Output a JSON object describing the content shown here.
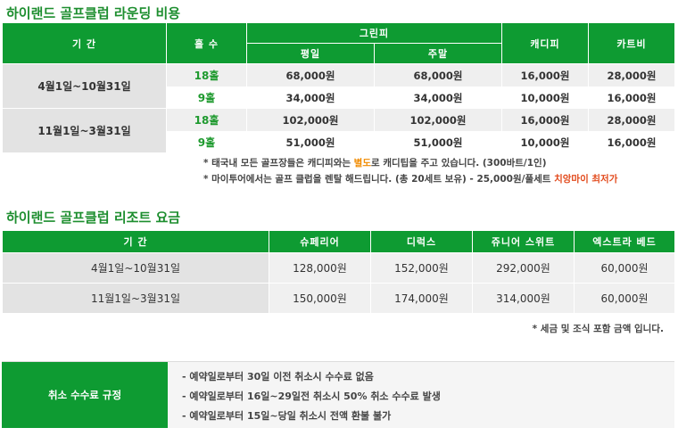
{
  "round": {
    "title": "하이랜드 골프클럽 라운딩 비용",
    "headers": {
      "period": "기 간",
      "holes": "홀 수",
      "green_fee": "그린피",
      "weekday": "평일",
      "weekend": "주말",
      "caddie": "캐디피",
      "cart": "카트비"
    },
    "rows": [
      {
        "period": "4월1일~10월31일",
        "holes": "18홀",
        "weekday": "68,000원",
        "weekend": "68,000원",
        "caddie": "16,000원",
        "cart": "28,000원"
      },
      {
        "period": "4월1일~10월31일",
        "holes": "9홀",
        "weekday": "34,000원",
        "weekend": "34,000원",
        "caddie": "10,000원",
        "cart": "16,000원"
      },
      {
        "period": "11월1일~3월31일",
        "holes": "18홀",
        "weekday": "102,000원",
        "weekend": "102,000원",
        "caddie": "16,000원",
        "cart": "28,000원"
      },
      {
        "period": "11월1일~3월31일",
        "holes": "9홀",
        "weekday": "51,000원",
        "weekend": "51,000원",
        "caddie": "10,000원",
        "cart": "16,000원"
      }
    ],
    "note1": {
      "a": "* 태국내 모든 골프장들은 캐디피와는 ",
      "b": "별도",
      "c": "로 캐디팁을 주고 있습니다. (300바트/1인)"
    },
    "note2": {
      "a": "* 마이투어에서는 골프 클럽을 렌탈 해드립니다. (총 20세트 보유) - 25,000원/풀세트 ",
      "b": "치앙마이 최저가"
    }
  },
  "resort": {
    "title": "하이랜드 골프클럽 리조트 요금",
    "headers": {
      "period": "기 간",
      "superior": "슈페리어",
      "deluxe": "디럭스",
      "junior_suite": "쥬니어 스위트",
      "extra_bed": "엑스트라 베드"
    },
    "rows": [
      {
        "period": "4월1일~10월31일",
        "superior": "128,000원",
        "deluxe": "152,000원",
        "junior_suite": "292,000원",
        "extra_bed": "60,000원"
      },
      {
        "period": "11월1일~3월31일",
        "superior": "150,000원",
        "deluxe": "174,000원",
        "junior_suite": "314,000원",
        "extra_bed": "60,000원"
      }
    ],
    "note": "* 세금 및 조식 포함 금액 입니다."
  },
  "cancellation": {
    "label": "취소 수수료 규정",
    "items": [
      "- 예약일로부터  30일 이전 취소시 수수료 없음",
      "- 예약일로부터  16일~29일전 취소시 50% 취소 수수료 발생",
      "- 예약일로부터  15일~당일 취소시 전액 환불 불가"
    ]
  },
  "colors": {
    "brand_green": "#0e9b32",
    "highlight_orange": "#f18b00",
    "highlight_red": "#e24a1c"
  }
}
